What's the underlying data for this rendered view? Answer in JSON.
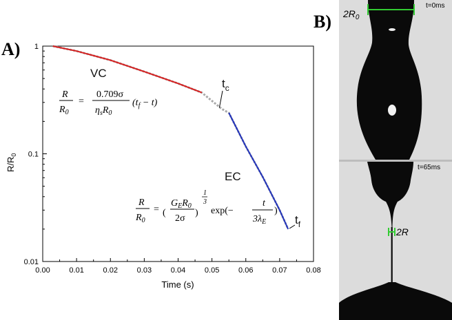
{
  "panels": {
    "a_label": "A)",
    "b_label": "B)"
  },
  "chart_data": {
    "type": "line",
    "xlabel": "Time (s)",
    "ylabel_main": "R/R",
    "ylabel_sub": "0",
    "xlim": [
      0,
      0.08
    ],
    "ylim": [
      0.01,
      1
    ],
    "yscale": "log",
    "grid": false,
    "xticks": [
      "0.00",
      "0.01",
      "0.02",
      "0.03",
      "0.04",
      "0.05",
      "0.06",
      "0.07",
      "0.08"
    ],
    "xtick_values": [
      0,
      0.01,
      0.02,
      0.03,
      0.04,
      0.05,
      0.06,
      0.07,
      0.08
    ],
    "yticks": [
      "0.01",
      "0.1",
      "1"
    ],
    "ytick_values": [
      0.01,
      0.1,
      1
    ],
    "series": [
      {
        "name": "VC",
        "color": "#d62020",
        "x": [
          0.003,
          0.01,
          0.02,
          0.03,
          0.04,
          0.047
        ],
        "y": [
          1.0,
          0.9,
          0.74,
          0.58,
          0.45,
          0.37
        ]
      },
      {
        "name": "EC",
        "color": "#2233bb",
        "x": [
          0.055,
          0.06,
          0.065,
          0.07,
          0.0725
        ],
        "y": [
          0.24,
          0.117,
          0.061,
          0.03,
          0.02
        ]
      }
    ],
    "measured": {
      "color": "#aaaaaa",
      "x": [
        0.003,
        0.01,
        0.02,
        0.03,
        0.04,
        0.047,
        0.05,
        0.053,
        0.055,
        0.06,
        0.065,
        0.07,
        0.0725
      ],
      "y": [
        1.0,
        0.9,
        0.74,
        0.58,
        0.45,
        0.37,
        0.31,
        0.26,
        0.24,
        0.117,
        0.061,
        0.03,
        0.02
      ]
    },
    "annotations": {
      "vc_label": "VC",
      "ec_label": "EC",
      "tc_main": "t",
      "tc_sub": "c",
      "tf_main": "t",
      "tf_sub": "f",
      "tc_point": {
        "x": 0.053,
        "y": 0.26
      },
      "tf_point": {
        "x": 0.0725,
        "y": 0.02
      }
    }
  },
  "equations": {
    "vc": {
      "lhs_num": "R",
      "lhs_den_main": "R",
      "lhs_den_sub": "0",
      "eq": "=",
      "coef": "0.709σ",
      "den_main": "η",
      "den_sub1": "s",
      "den_r": "R",
      "den_sub2": "0",
      "paren": "(t",
      "paren_sub": "f",
      "paren_end": " − t)"
    },
    "ec": {
      "lhs_num": "R",
      "lhs_den_main": "R",
      "lhs_den_sub": "0",
      "eq": "=",
      "inner_num_a": "G",
      "inner_num_a_sub": "E",
      "inner_num_b": "R",
      "inner_num_b_sub": "0",
      "inner_den": "2σ",
      "exp_num": "1",
      "exp_den": "3",
      "exp_fn": "exp(−",
      "frac_num": "t",
      "frac_den": "3λ",
      "frac_den_sub": "E",
      "close": ")"
    }
  },
  "images": {
    "top_time": "t=0ms",
    "bottom_time": "t=65ms",
    "top_scale_main": "2R",
    "top_scale_sub": "0",
    "bottom_scale": "2R",
    "scale_color": "#33cc33"
  }
}
